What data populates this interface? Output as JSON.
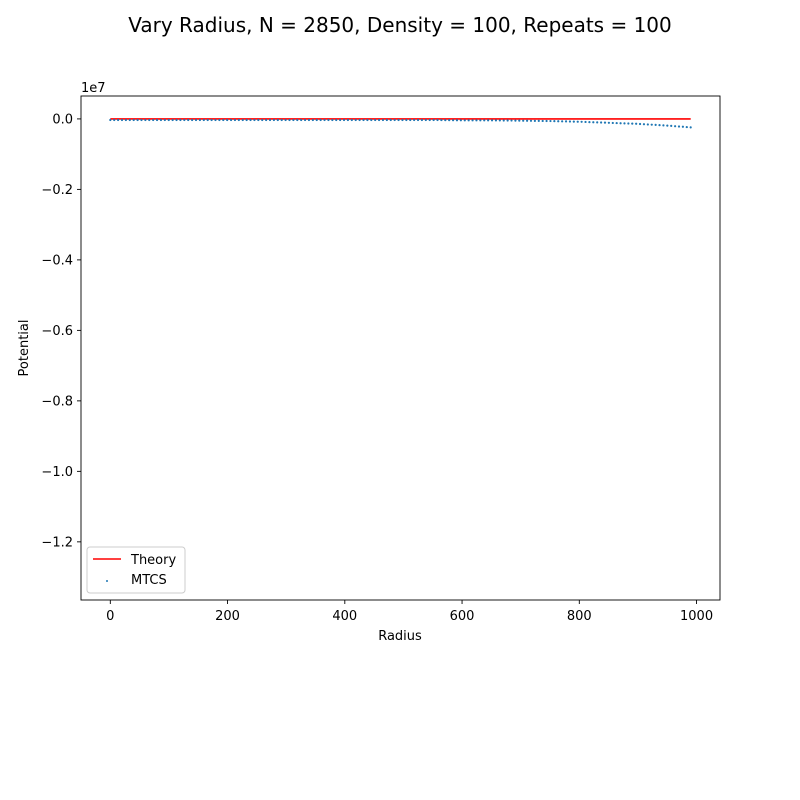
{
  "chart_data": {
    "type": "line",
    "title": "Vary Radius, N = 2850, Density = 100, Repeats = 100",
    "xlabel": "Radius",
    "ylabel": "Potential",
    "offset_text": "1e7",
    "xlim": [
      -50,
      1040
    ],
    "ylim": [
      -1.365,
      0.065
    ],
    "x_ticks": [
      0,
      200,
      400,
      600,
      800,
      1000
    ],
    "x_tick_labels": [
      "0",
      "200",
      "400",
      "600",
      "800",
      "1000"
    ],
    "y_ticks": [
      0.0,
      -0.2,
      -0.4,
      -0.6,
      -0.8,
      -1.0,
      -1.2
    ],
    "y_tick_labels": [
      "0.0",
      "−0.2",
      "−0.4",
      "−0.6",
      "−0.8",
      "−1.0",
      "−1.2"
    ],
    "grid": false,
    "legend_placement": "lower-left",
    "series": [
      {
        "name": "Theory",
        "kind": "line",
        "color": "#ff0000",
        "x": [
          0,
          100,
          200,
          300,
          400,
          500,
          600,
          700,
          800,
          900,
          990
        ],
        "y": [
          0,
          0,
          0,
          0,
          0,
          0,
          0,
          0,
          0,
          0,
          0
        ]
      },
      {
        "name": "MTCS",
        "kind": "scatter",
        "color": "#1f77b4",
        "x": [
          0,
          50,
          100,
          150,
          200,
          250,
          300,
          350,
          400,
          450,
          500,
          550,
          600,
          650,
          700,
          750,
          800,
          850,
          900,
          950,
          990
        ],
        "y": [
          -0.003,
          -0.003,
          -0.003,
          -0.003,
          -0.003,
          -0.003,
          -0.003,
          -0.003,
          -0.003,
          -0.003,
          -0.003,
          -0.003,
          -0.004,
          -0.004,
          -0.005,
          -0.006,
          -0.008,
          -0.011,
          -0.014,
          -0.019,
          -0.024
        ]
      }
    ]
  }
}
